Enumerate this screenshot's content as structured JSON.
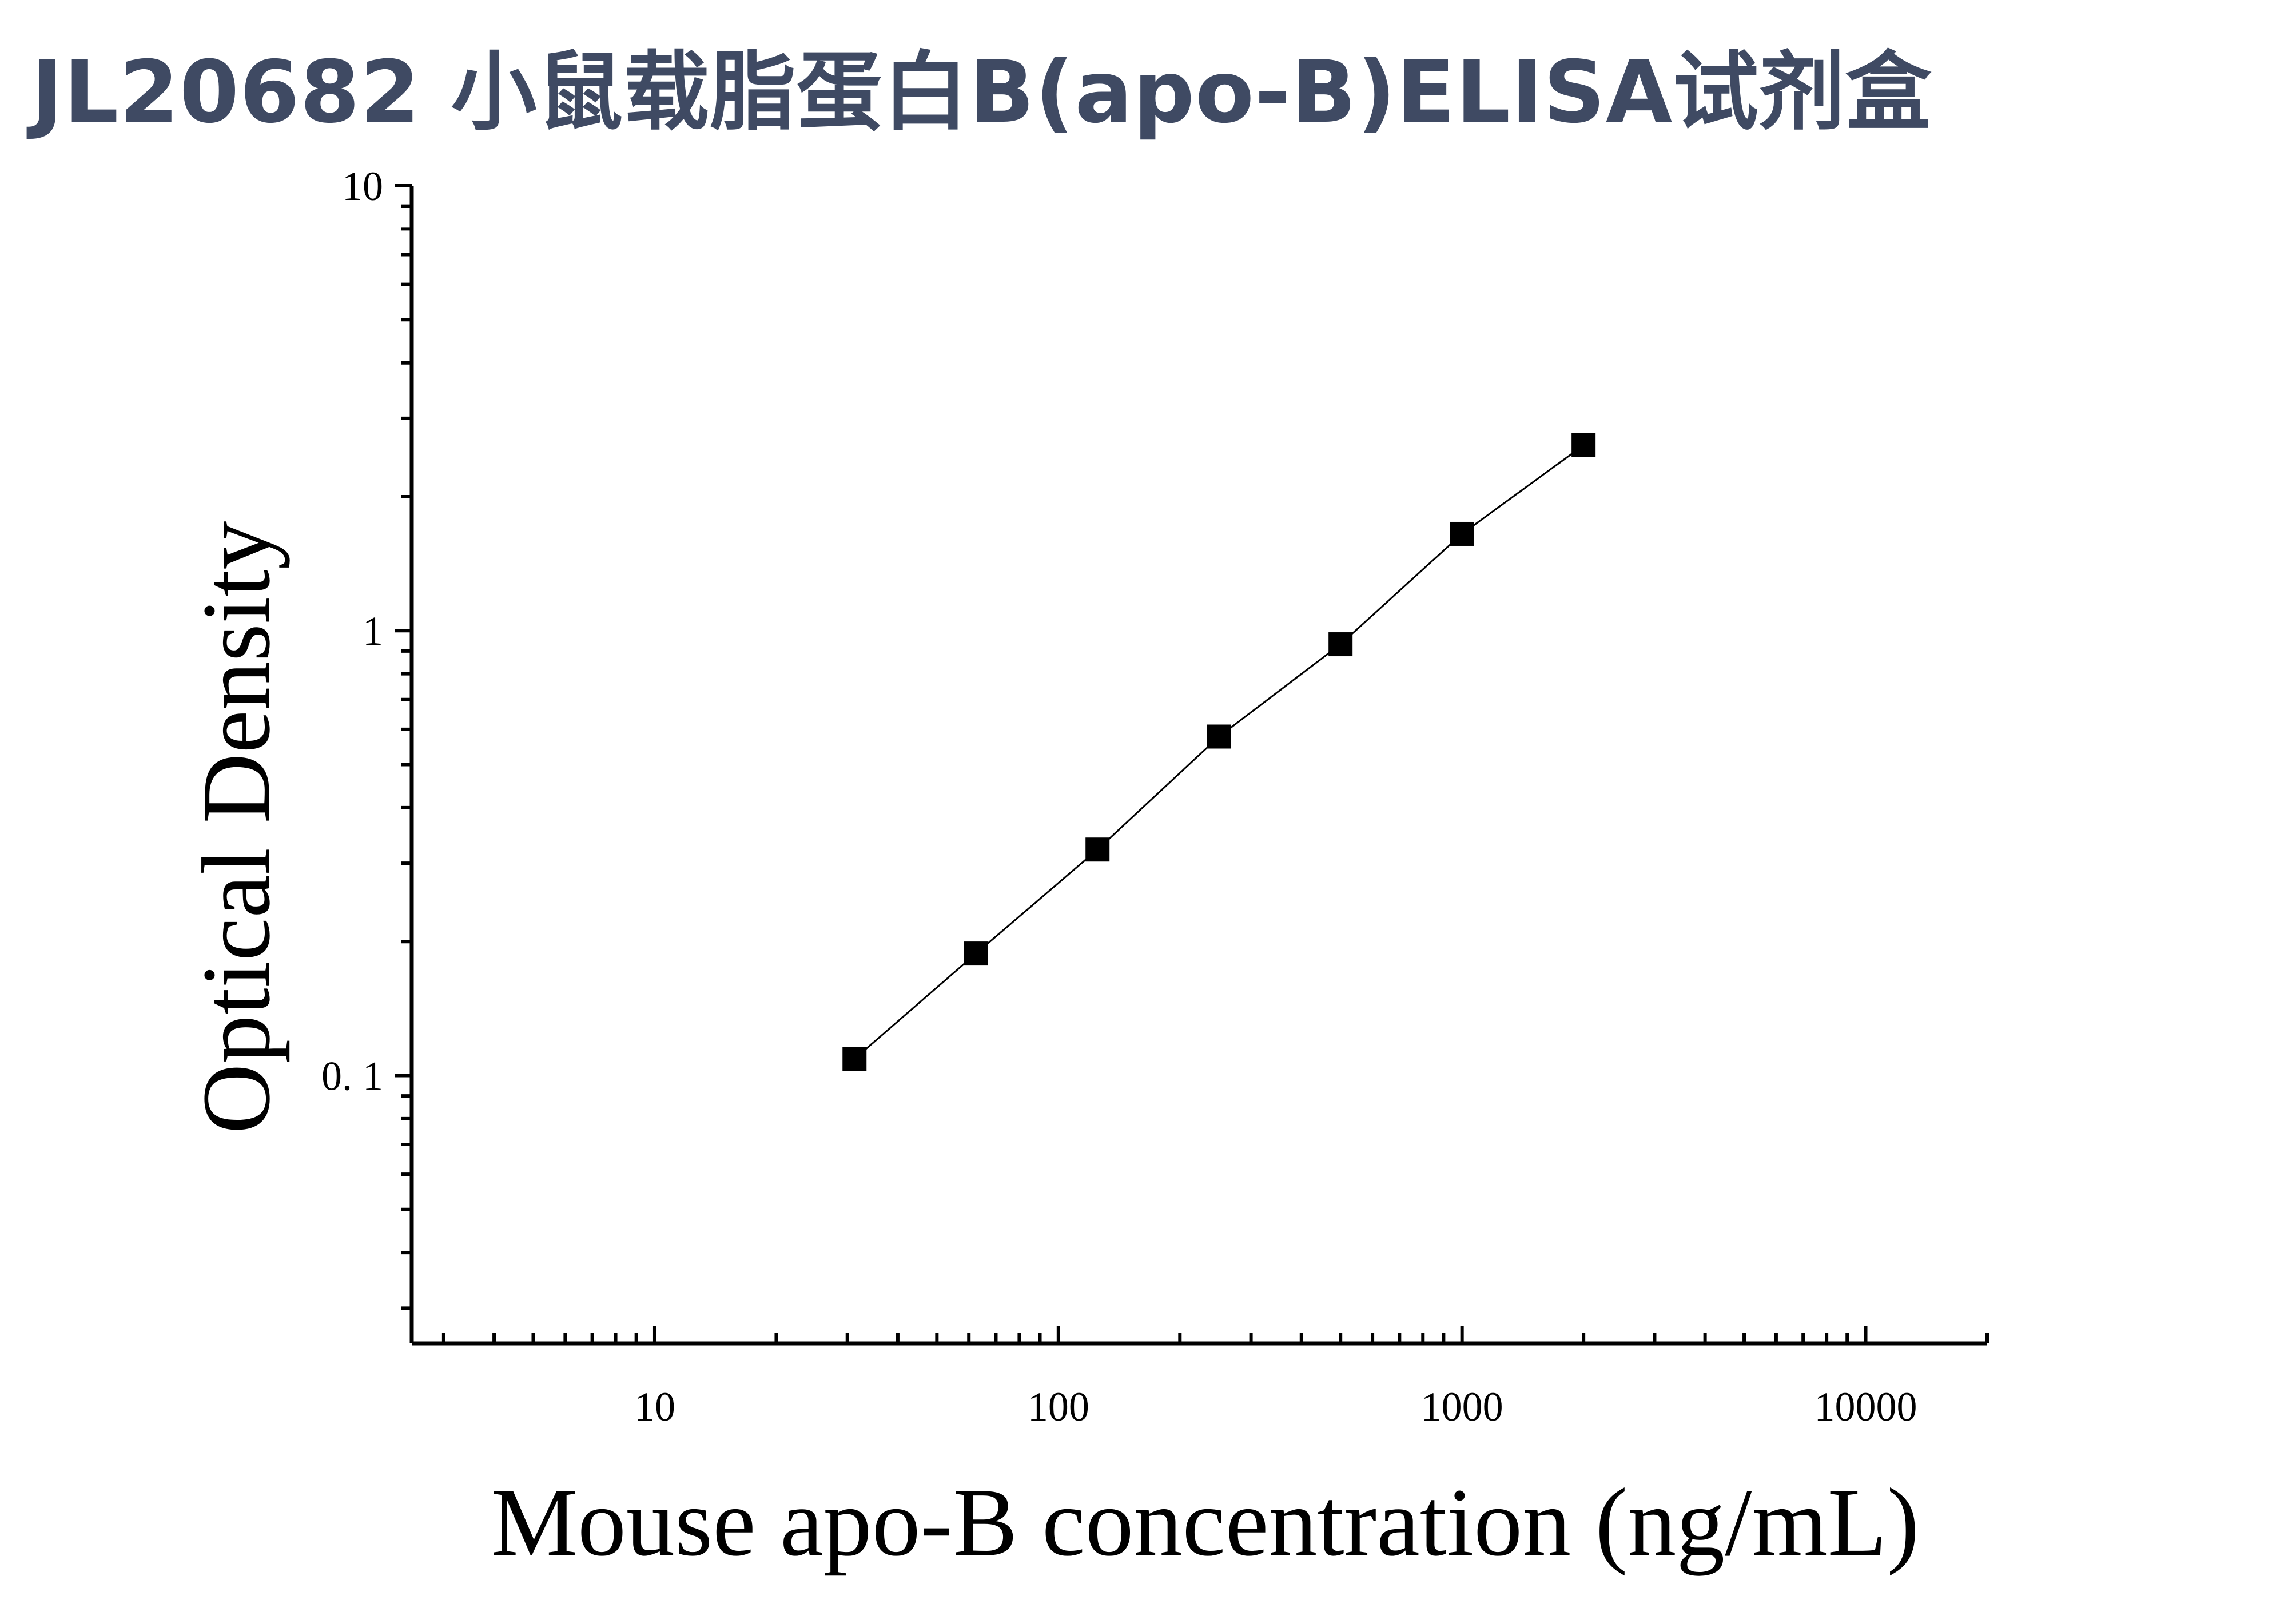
{
  "title": "JL20682 小鼠载脂蛋白B(apo-B)ELISA试剂盒",
  "chart_data": {
    "type": "scatter",
    "xlabel": "Mouse apo-B concentration (ng/mL)",
    "ylabel": "Optical Density",
    "xscale": "log",
    "yscale": "log",
    "xlim": [
      2.5,
      20000
    ],
    "ylim": [
      0.025,
      10
    ],
    "x_ticks": [
      10,
      100,
      1000,
      10000
    ],
    "x_tick_labels": [
      "10",
      "100",
      "1000",
      "10000"
    ],
    "y_ticks": [
      0.1,
      1,
      10
    ],
    "y_tick_labels": [
      "0. 1",
      "1",
      "10"
    ],
    "series": [
      {
        "marker": "square",
        "x": [
          31.25,
          62.5,
          125,
          250,
          500,
          1000,
          2000
        ],
        "y": [
          0.109,
          0.188,
          0.322,
          0.578,
          0.932,
          1.65,
          2.61
        ]
      }
    ],
    "fit_curve": true,
    "grid": false,
    "colors": {
      "marker": "#000000",
      "curve": "#000000",
      "title": "#3f4a63"
    }
  }
}
